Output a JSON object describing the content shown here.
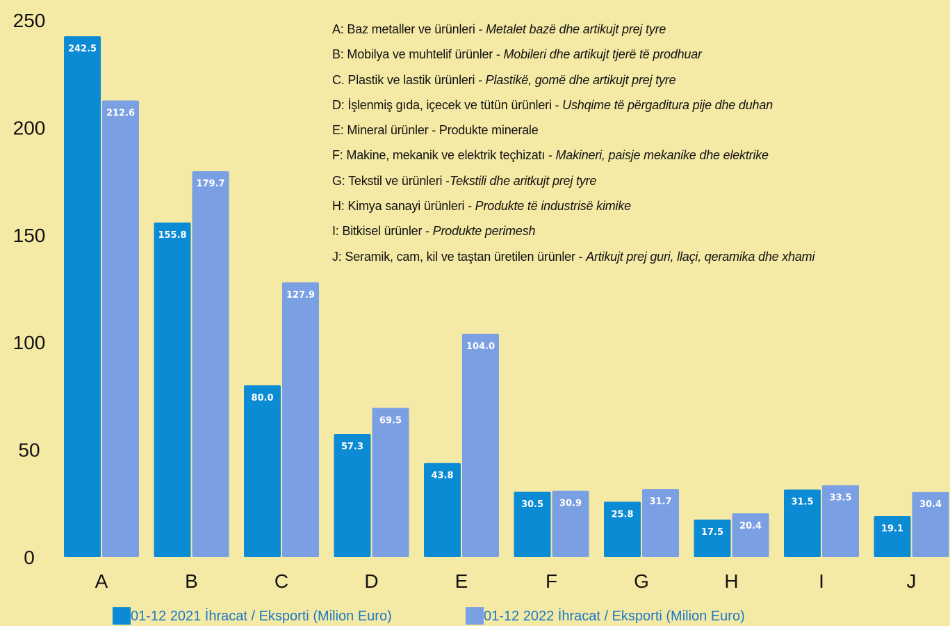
{
  "chart_data": {
    "type": "bar",
    "categories": [
      "A",
      "B",
      "C",
      "D",
      "E",
      "F",
      "G",
      "H",
      "I",
      "J"
    ],
    "series": [
      {
        "name": "01-12 2021 İhracat / Eksporti (Milion Euro)",
        "color": "#0a8bd4",
        "values": [
          242.5,
          155.8,
          80.0,
          57.3,
          43.8,
          30.5,
          25.8,
          17.5,
          31.5,
          19.1
        ],
        "labels": [
          "242.5",
          "155.8",
          "80.0",
          "57.3",
          "43.8",
          "30.5",
          "25.8",
          "17.5",
          "31.5",
          "19.1"
        ]
      },
      {
        "name": "01-12 2022 İhracat / Eksporti (Milion Euro)",
        "color": "#7b9fe3",
        "values": [
          212.6,
          179.7,
          127.9,
          69.5,
          104.0,
          30.9,
          31.7,
          20.4,
          33.5,
          30.4
        ],
        "labels": [
          "212.6",
          "179.7",
          "127.9",
          "69.5",
          "104.0",
          "30.9",
          "31.7",
          "20.4",
          "33.5",
          "30.4"
        ]
      }
    ],
    "ylim": [
      0,
      250
    ],
    "yticks": [
      "0",
      "50",
      "100",
      "150",
      "200",
      "250"
    ],
    "title": "",
    "xlabel": "",
    "ylabel": "",
    "grid": false,
    "legend_position": "bottom",
    "category_descriptions": [
      {
        "tr": "A: Baz metaller ve ürünleri - ",
        "sq": "Metalet bazë dhe artikujt prej tyre"
      },
      {
        "tr": "B: Mobilya ve muhtelif ürünler -  ",
        "sq": "Mobileri dhe artikujt tjerë të prodhuar"
      },
      {
        "tr": "C. Plastik ve lastik ürünleri - ",
        "sq": "Plastikë, gomë dhe artikujt prej tyre"
      },
      {
        "tr": "D: İşlenmiş gıda, içecek ve tütün ürünleri - ",
        "sq": "Ushqime të përgaditura  pije dhe duhan"
      },
      {
        "tr": "E: Mineral ürünler - Produkte minerale",
        "sq": ""
      },
      {
        "tr": "F: Makine, mekanik ve elektrik teçhizatı - ",
        "sq": "Makineri, paisje mekanike dhe elektrike"
      },
      {
        "tr": "G: Tekstil ve ürünleri -",
        "sq": "Tekstili dhe aritkujt prej tyre"
      },
      {
        "tr": "H: Kimya sanayi ürünleri - ",
        "sq": "Produkte të industrisë kimike"
      },
      {
        "tr": "I: Bitkisel ürünler -  ",
        "sq": "Produkte perimesh"
      },
      {
        "tr": "J: Seramik, cam, kil ve taştan üretilen ürünler - ",
        "sq": "Artikujt prej guri, llaçi, qeramika dhe xhami"
      }
    ]
  }
}
